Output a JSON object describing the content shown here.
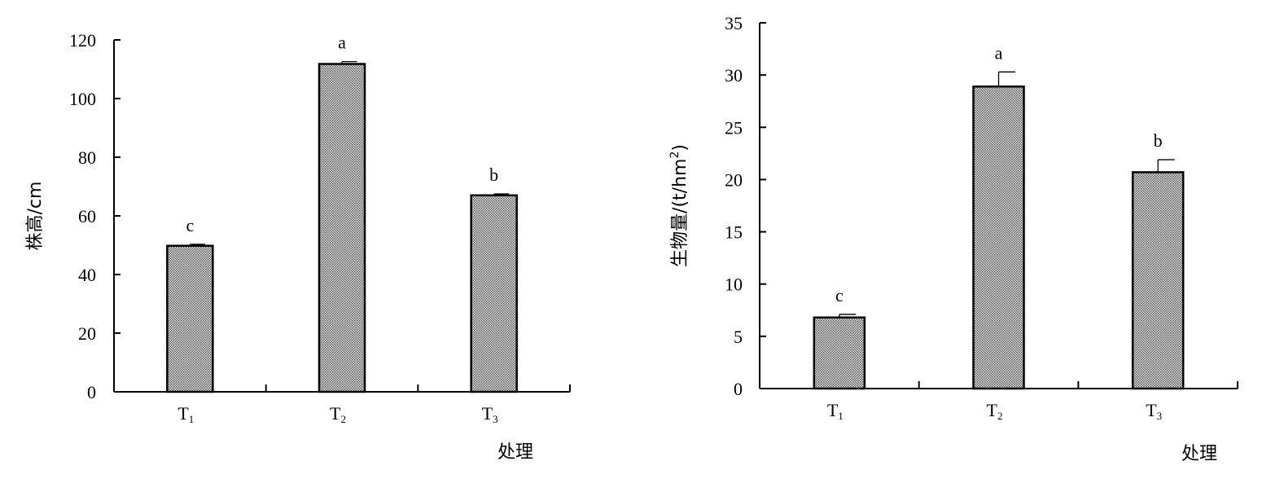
{
  "chart_data": [
    {
      "type": "bar",
      "categories": [
        {
          "main": "T",
          "sub": "1"
        },
        {
          "main": "T",
          "sub": "2"
        },
        {
          "main": "T",
          "sub": "3"
        }
      ],
      "values": [
        49.8,
        111.8,
        67.0
      ],
      "errors": [
        0.5,
        0.8,
        0.5
      ],
      "significance": [
        "c",
        "a",
        "b"
      ],
      "ylabel": "株高/cm",
      "xlabel": "处理",
      "ylim": [
        0,
        120
      ],
      "yticks": [
        0,
        20,
        40,
        60,
        80,
        100,
        120
      ]
    },
    {
      "type": "bar",
      "categories": [
        {
          "main": "T",
          "sub": "1"
        },
        {
          "main": "T",
          "sub": "2"
        },
        {
          "main": "T",
          "sub": "3"
        }
      ],
      "values": [
        6.8,
        28.9,
        20.7
      ],
      "errors": [
        0.3,
        1.4,
        1.2
      ],
      "significance": [
        "c",
        "a",
        "b"
      ],
      "ylabel": "生物量/(t/hm",
      "ylabel_sup": "2",
      "ylabel_close": ")",
      "xlabel": "处理",
      "ylim": [
        0,
        35
      ],
      "yticks": [
        0,
        5,
        10,
        15,
        20,
        25,
        30,
        35
      ]
    }
  ]
}
